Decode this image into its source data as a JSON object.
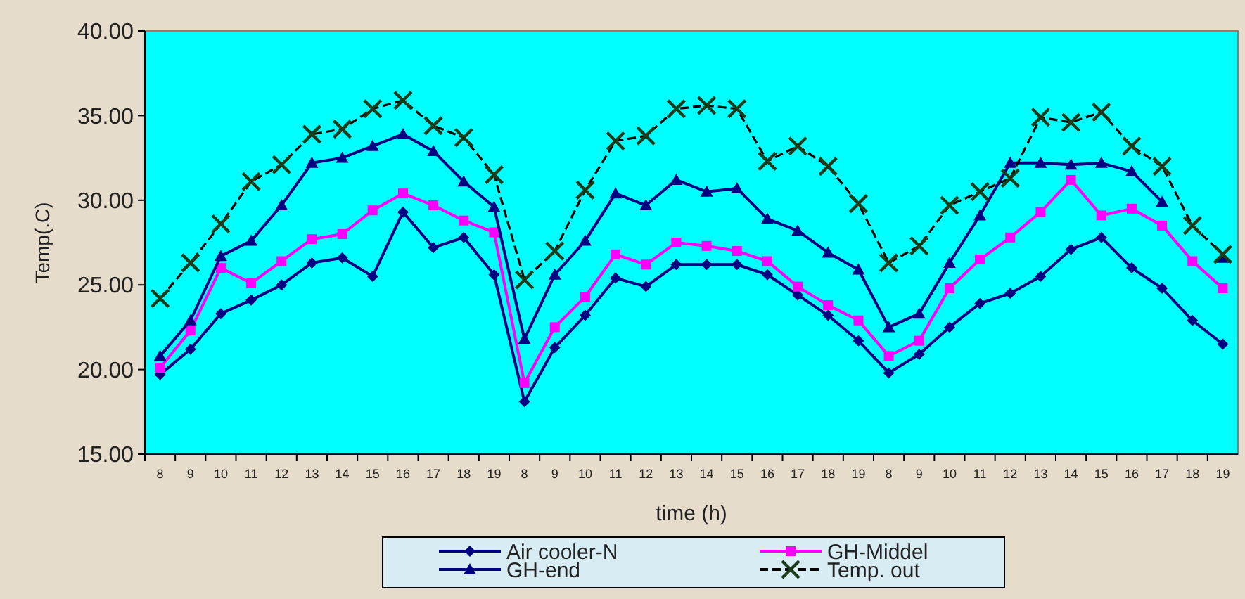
{
  "chart_data": {
    "type": "line",
    "xlabel": "time (h)",
    "ylabel": "Temp(.C)",
    "categories": [
      "8",
      "9",
      "10",
      "11",
      "12",
      "13",
      "14",
      "15",
      "16",
      "17",
      "18",
      "19",
      "8",
      "9",
      "10",
      "11",
      "12",
      "13",
      "14",
      "15",
      "16",
      "17",
      "18",
      "19",
      "8",
      "9",
      "10",
      "11",
      "12",
      "13",
      "14",
      "15",
      "16",
      "17",
      "18",
      "19"
    ],
    "ylim": [
      15,
      40
    ],
    "yticks": [
      {
        "value": 15,
        "label": "15.00"
      },
      {
        "value": 20,
        "label": "20.00"
      },
      {
        "value": 25,
        "label": "25.00"
      },
      {
        "value": 30,
        "label": "30.00"
      },
      {
        "value": 35,
        "label": "35.00"
      },
      {
        "value": 40,
        "label": "40.00"
      }
    ],
    "grid": false,
    "legend": "bottom",
    "series": [
      {
        "name": "Air cooler-N",
        "color": "#000080",
        "marker": "diamond",
        "line_style": "solid",
        "values": [
          19.7,
          21.2,
          23.3,
          24.1,
          25.0,
          26.3,
          26.6,
          25.5,
          29.3,
          27.2,
          27.8,
          25.6,
          18.1,
          21.3,
          23.2,
          25.4,
          24.9,
          26.2,
          26.2,
          26.2,
          25.6,
          24.4,
          23.2,
          21.7,
          19.8,
          20.9,
          22.5,
          23.9,
          24.5,
          25.5,
          27.1,
          27.8,
          26.0,
          24.8,
          22.9,
          21.5
        ]
      },
      {
        "name": "GH-Middel",
        "color": "#ff00ff",
        "marker": "square",
        "line_style": "solid",
        "values": [
          20.1,
          22.3,
          26.0,
          25.1,
          26.4,
          27.7,
          28.0,
          29.4,
          30.4,
          29.7,
          28.8,
          28.1,
          19.2,
          22.5,
          24.3,
          26.8,
          26.2,
          27.5,
          27.3,
          27.0,
          26.4,
          24.9,
          23.8,
          22.9,
          20.8,
          21.7,
          24.8,
          26.5,
          27.8,
          29.3,
          31.2,
          29.1,
          29.5,
          28.5,
          26.4,
          24.8
        ]
      },
      {
        "name": "GH-end",
        "color": "#000080",
        "marker": "triangle",
        "line_style": "solid",
        "values": [
          20.8,
          22.9,
          26.7,
          27.6,
          29.7,
          32.2,
          32.5,
          33.2,
          33.9,
          32.9,
          31.1,
          29.6,
          21.8,
          25.6,
          27.6,
          30.4,
          29.7,
          31.2,
          30.5,
          30.7,
          28.9,
          28.2,
          26.9,
          25.9,
          22.5,
          23.3,
          26.3,
          29.1,
          32.2,
          32.2,
          32.1,
          32.2,
          31.7,
          29.9,
          null,
          26.6
        ]
      },
      {
        "name": "Temp. out",
        "color": "#000000",
        "marker": "cross",
        "line_style": "dashed",
        "values": [
          24.2,
          26.3,
          28.6,
          31.1,
          32.1,
          33.9,
          34.2,
          35.4,
          35.9,
          34.4,
          33.7,
          31.5,
          25.3,
          27.0,
          30.6,
          33.5,
          33.8,
          35.4,
          35.6,
          35.4,
          32.3,
          33.2,
          32.0,
          29.8,
          26.3,
          27.3,
          29.7,
          30.5,
          31.3,
          34.9,
          34.6,
          35.2,
          33.2,
          32.0,
          28.5,
          26.8
        ]
      }
    ]
  }
}
